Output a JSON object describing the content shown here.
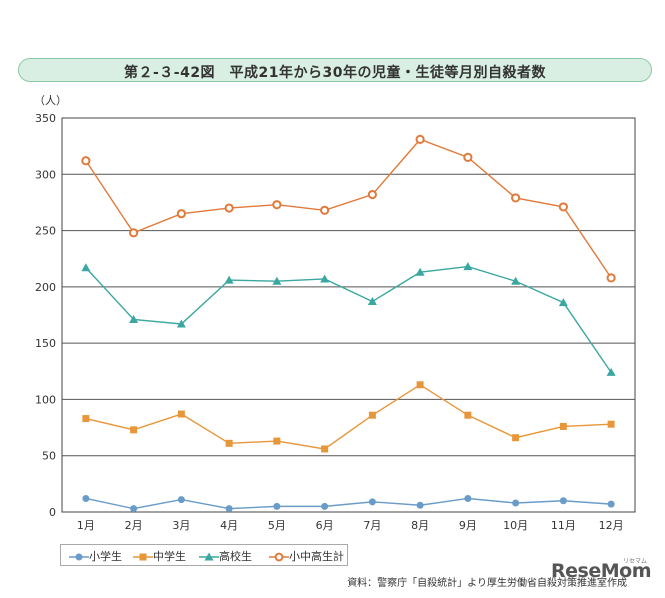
{
  "title": "第２-３-42図　平成21年から30年の児童・生徒等月別自殺者数",
  "source": "資料：警察庁「自殺統計」より厚生労働省自殺対策推進室作成",
  "logo": "ReseMom",
  "logo_sub": "リセマム",
  "chart_data": {
    "type": "line",
    "ylabel": "（人）",
    "ylim": [
      0,
      350
    ],
    "yticks": [
      0,
      50,
      100,
      150,
      200,
      250,
      300,
      350
    ],
    "grid": true,
    "legend_position": "bottom-left",
    "categories": [
      "1月",
      "2月",
      "3月",
      "4月",
      "5月",
      "6月",
      "7月",
      "8月",
      "9月",
      "10月",
      "11月",
      "12月"
    ],
    "series": [
      {
        "name": "小学生",
        "color": "#6a9cc9",
        "marker": "circle",
        "values": [
          12,
          3,
          11,
          3,
          5,
          5,
          9,
          6,
          12,
          8,
          10,
          7
        ]
      },
      {
        "name": "中学生",
        "color": "#e8963a",
        "marker": "square",
        "values": [
          83,
          73,
          87,
          61,
          63,
          56,
          86,
          113,
          86,
          66,
          76,
          78
        ]
      },
      {
        "name": "高校生",
        "color": "#3aa7a0",
        "marker": "triangle",
        "values": [
          217,
          171,
          167,
          206,
          205,
          207,
          187,
          213,
          218,
          205,
          186,
          124
        ]
      },
      {
        "name": "小中高生計",
        "color": "#e07a3a",
        "marker": "ring",
        "values": [
          312,
          248,
          265,
          270,
          273,
          268,
          282,
          331,
          315,
          279,
          271,
          208
        ]
      }
    ]
  }
}
